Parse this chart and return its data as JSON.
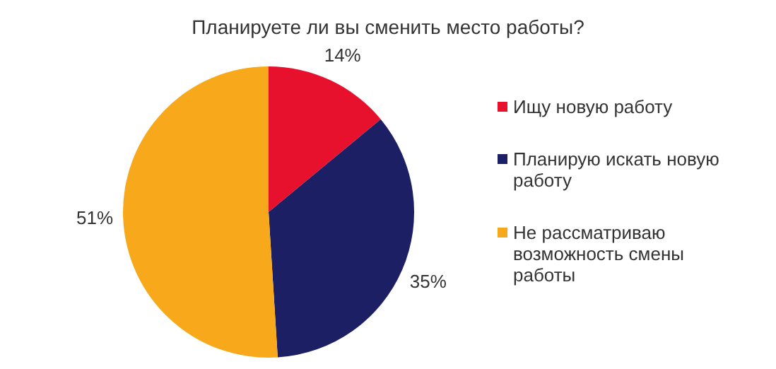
{
  "chart_data": {
    "type": "pie",
    "title": "Планируете ли вы сменить место работы?",
    "categories": [
      "Ищу новую работу",
      "Планирую искать новую работу",
      "Не рассматриваю возможность смены работы"
    ],
    "values": [
      14,
      35,
      51
    ],
    "colors": [
      "#e8112d",
      "#1c1f63",
      "#f7a91b"
    ],
    "value_labels": [
      "14%",
      "35%",
      "51%"
    ],
    "legend": "right"
  }
}
